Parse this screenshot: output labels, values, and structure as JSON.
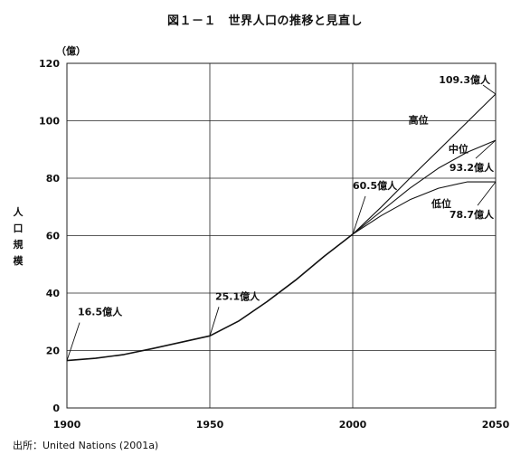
{
  "chart_data": {
    "type": "line",
    "title": "図１－１　世界人口の推移と見直し",
    "ylabel": "人口規模",
    "yunit": "（億）",
    "xlim": [
      1900,
      2050
    ],
    "ylim": [
      0,
      120
    ],
    "xticks": [
      1900,
      1950,
      2000,
      2050
    ],
    "yticks": [
      0,
      20,
      40,
      60,
      80,
      100,
      120
    ],
    "grid": true,
    "series": [
      {
        "name": "",
        "points": [
          [
            1900,
            16.5
          ],
          [
            1910,
            17.3
          ],
          [
            1920,
            18.6
          ],
          [
            1930,
            20.7
          ],
          [
            1940,
            22.9
          ],
          [
            1950,
            25.1
          ],
          [
            1960,
            30.2
          ],
          [
            1970,
            37.0
          ],
          [
            1980,
            44.5
          ],
          [
            1990,
            52.8
          ],
          [
            2000,
            60.5
          ]
        ]
      },
      {
        "name": "高位",
        "points": [
          [
            2000,
            60.5
          ],
          [
            2010,
            70.0
          ],
          [
            2020,
            80.0
          ],
          [
            2030,
            89.7
          ],
          [
            2040,
            99.5
          ],
          [
            2050,
            109.3
          ]
        ]
      },
      {
        "name": "中位",
        "points": [
          [
            2000,
            60.5
          ],
          [
            2010,
            68.5
          ],
          [
            2020,
            76.5
          ],
          [
            2030,
            83.5
          ],
          [
            2040,
            89.0
          ],
          [
            2050,
            93.2
          ]
        ]
      },
      {
        "name": "低位",
        "points": [
          [
            2000,
            60.5
          ],
          [
            2010,
            67.0
          ],
          [
            2020,
            72.5
          ],
          [
            2030,
            76.5
          ],
          [
            2040,
            78.7
          ],
          [
            2050,
            78.7
          ]
        ]
      }
    ],
    "annotations": [
      {
        "text": "16.5億人",
        "x": 1900,
        "y": 16.5
      },
      {
        "text": "25.1億人",
        "x": 1950,
        "y": 25.1
      },
      {
        "text": "60.5億人",
        "x": 2000,
        "y": 60.5
      },
      {
        "text": "109.3億人",
        "x": 2050,
        "y": 109.3
      },
      {
        "text": "93.2億人",
        "x": 2050,
        "y": 93.2
      },
      {
        "text": "78.7億人",
        "x": 2050,
        "y": 78.7
      }
    ],
    "source": "出所：United Nations (2001a)"
  }
}
